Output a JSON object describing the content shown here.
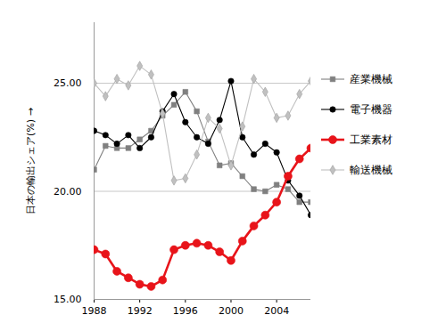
{
  "chart_data": {
    "type": "line",
    "y_label": "日本の輸出シェア(%)",
    "x": [
      1988,
      1989,
      1990,
      1991,
      1992,
      1993,
      1994,
      1995,
      1996,
      1997,
      1998,
      1999,
      2000,
      2001,
      2002,
      2003,
      2004,
      2005,
      2006,
      2007
    ],
    "series": [
      {
        "name": "産業機械",
        "color": "#808080",
        "marker": "square",
        "line_style": "solid",
        "values": [
          21.0,
          22.1,
          22.0,
          22.0,
          22.4,
          22.8,
          23.5,
          24.0,
          24.6,
          23.7,
          22.3,
          21.2,
          21.3,
          20.7,
          20.1,
          20.0,
          20.3,
          20.1,
          19.5,
          19.5
        ]
      },
      {
        "name": "電子機器",
        "color": "#000000",
        "marker": "circle",
        "line_style": "solid",
        "values": [
          22.8,
          22.6,
          22.2,
          22.6,
          22.0,
          22.5,
          23.7,
          24.5,
          23.2,
          22.5,
          22.2,
          23.3,
          25.1,
          22.5,
          21.7,
          22.2,
          21.8,
          20.5,
          19.8,
          18.9
        ]
      },
      {
        "name": "工業素材",
        "color": "#e8141a",
        "marker": "circle",
        "line_style": "bold",
        "values": [
          17.3,
          17.1,
          16.3,
          16.0,
          15.7,
          15.6,
          15.9,
          17.3,
          17.5,
          17.6,
          17.5,
          17.2,
          16.8,
          17.7,
          18.4,
          18.9,
          19.5,
          20.7,
          21.5,
          22.0
        ]
      },
      {
        "name": "輸送機械",
        "color": "#c0c0c0",
        "marker": "diamond",
        "line_style": "solid",
        "values": [
          25.0,
          24.4,
          25.2,
          24.9,
          25.8,
          25.4,
          23.6,
          20.5,
          20.6,
          21.7,
          23.4,
          22.9,
          21.2,
          23.0,
          25.2,
          24.6,
          23.4,
          23.5,
          24.5,
          25.1
        ]
      }
    ],
    "xlim": [
      1988,
      2007
    ],
    "xticks": [
      1988,
      1992,
      1996,
      2000,
      2004
    ],
    "ylim": [
      15,
      27.8
    ],
    "yticks": [
      {
        "value": 15,
        "label": "15.00"
      },
      {
        "value": 20,
        "label": "20.00"
      },
      {
        "value": 25,
        "label": "25.00"
      }
    ],
    "grid": true,
    "legend": "right"
  }
}
